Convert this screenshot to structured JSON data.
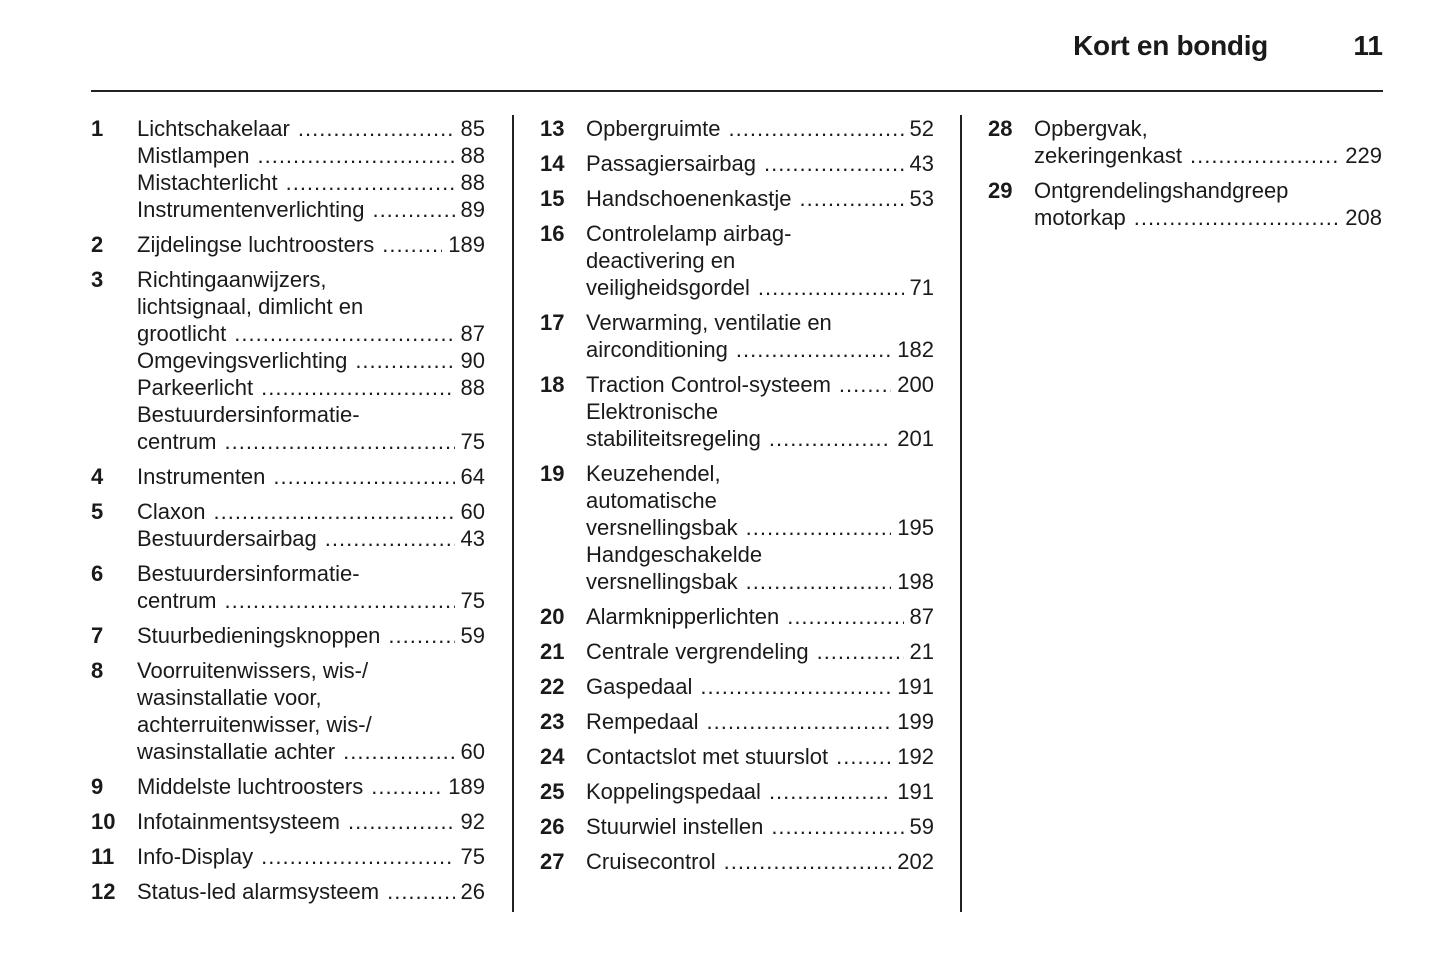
{
  "header": {
    "title": "Kort en bondig",
    "page_number": "11"
  },
  "columns": [
    [
      {
        "num": "1",
        "lines": [
          {
            "text": "Lichtschakelaar",
            "page": "85"
          },
          {
            "text": "Mistlampen",
            "page": "88"
          },
          {
            "text": "Mistachterlicht",
            "page": "88"
          },
          {
            "text": "Instrumentenverlichting",
            "page": "89"
          }
        ]
      },
      {
        "num": "2",
        "lines": [
          {
            "text": "Zijdelingse luchtroosters",
            "page": "189"
          }
        ]
      },
      {
        "num": "3",
        "lines": [
          {
            "text": "Richtingaanwijzers,"
          },
          {
            "text": "lichtsignaal, dimlicht en"
          },
          {
            "text": "grootlicht",
            "page": "87"
          },
          {
            "text": "Omgevingsverlichting",
            "page": "90"
          },
          {
            "text": "Parkeerlicht",
            "page": "88"
          },
          {
            "text": "Bestuurdersinformatie-"
          },
          {
            "text": "centrum",
            "page": "75"
          }
        ]
      },
      {
        "num": "4",
        "lines": [
          {
            "text": "Instrumenten",
            "page": "64"
          }
        ]
      },
      {
        "num": "5",
        "lines": [
          {
            "text": "Claxon",
            "page": "60"
          },
          {
            "text": "Bestuurdersairbag",
            "page": "43"
          }
        ]
      },
      {
        "num": "6",
        "lines": [
          {
            "text": "Bestuurdersinformatie-"
          },
          {
            "text": "centrum",
            "page": "75"
          }
        ]
      },
      {
        "num": "7",
        "lines": [
          {
            "text": "Stuurbedieningsknoppen",
            "page": "59"
          }
        ]
      },
      {
        "num": "8",
        "lines": [
          {
            "text": "Voorruitenwissers, wis-/"
          },
          {
            "text": "wasinstallatie voor,"
          },
          {
            "text": "achterruitenwisser, wis-/"
          },
          {
            "text": "wasinstallatie achter",
            "page": "60"
          }
        ]
      },
      {
        "num": "9",
        "lines": [
          {
            "text": "Middelste luchtroosters",
            "page": "189"
          }
        ]
      },
      {
        "num": "10",
        "lines": [
          {
            "text": "Infotainmentsysteem",
            "page": "92"
          }
        ]
      },
      {
        "num": "11",
        "lines": [
          {
            "text": "Info-Display",
            "page": "75"
          }
        ]
      },
      {
        "num": "12",
        "lines": [
          {
            "text": "Status-led alarmsysteem",
            "page": "26"
          }
        ]
      }
    ],
    [
      {
        "num": "13",
        "lines": [
          {
            "text": "Opbergruimte",
            "page": "52"
          }
        ]
      },
      {
        "num": "14",
        "lines": [
          {
            "text": "Passagiersairbag",
            "page": "43"
          }
        ]
      },
      {
        "num": "15",
        "lines": [
          {
            "text": "Handschoenenkastje",
            "page": "53"
          }
        ]
      },
      {
        "num": "16",
        "lines": [
          {
            "text": "Controlelamp airbag-"
          },
          {
            "text": "deactivering en"
          },
          {
            "text": "veiligheidsgordel",
            "page": "71"
          }
        ]
      },
      {
        "num": "17",
        "lines": [
          {
            "text": "Verwarming, ventilatie en"
          },
          {
            "text": "airconditioning",
            "page": "182"
          }
        ]
      },
      {
        "num": "18",
        "lines": [
          {
            "text": "Traction Control-systeem",
            "page": "200"
          },
          {
            "text": "Elektronische"
          },
          {
            "text": "stabiliteitsregeling",
            "page": "201"
          }
        ]
      },
      {
        "num": "19",
        "lines": [
          {
            "text": "Keuzehendel,"
          },
          {
            "text": "automatische"
          },
          {
            "text": "versnellingsbak",
            "page": "195"
          },
          {
            "text": "Handgeschakelde"
          },
          {
            "text": "versnellingsbak",
            "page": "198"
          }
        ]
      },
      {
        "num": "20",
        "lines": [
          {
            "text": "Alarmknipperlichten",
            "page": "87"
          }
        ]
      },
      {
        "num": "21",
        "lines": [
          {
            "text": "Centrale vergrendeling",
            "page": "21"
          }
        ]
      },
      {
        "num": "22",
        "lines": [
          {
            "text": "Gaspedaal",
            "page": "191"
          }
        ]
      },
      {
        "num": "23",
        "lines": [
          {
            "text": "Rempedaal",
            "page": "199"
          }
        ]
      },
      {
        "num": "24",
        "lines": [
          {
            "text": "Contactslot met stuurslot",
            "page": "192"
          }
        ]
      },
      {
        "num": "25",
        "lines": [
          {
            "text": "Koppelingspedaal",
            "page": "191"
          }
        ]
      },
      {
        "num": "26",
        "lines": [
          {
            "text": "Stuurwiel instellen",
            "page": "59"
          }
        ]
      },
      {
        "num": "27",
        "lines": [
          {
            "text": "Cruisecontrol",
            "page": "202"
          }
        ]
      }
    ],
    [
      {
        "num": "28",
        "lines": [
          {
            "text": "Opbergvak,"
          },
          {
            "text": "zekeringenkast",
            "page": "229"
          }
        ]
      },
      {
        "num": "29",
        "lines": [
          {
            "text": "Ontgrendelingshandgreep"
          },
          {
            "text": "motorkap",
            "page": "208"
          }
        ]
      }
    ]
  ]
}
